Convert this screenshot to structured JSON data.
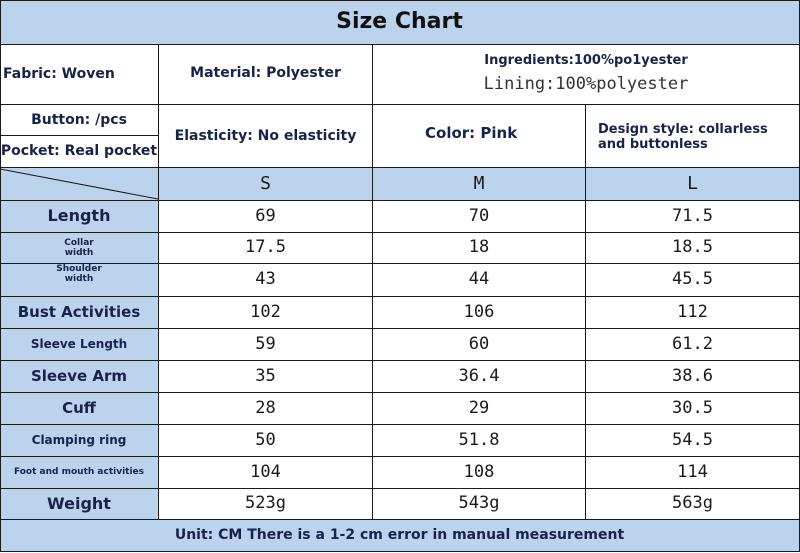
{
  "title": "Size Chart",
  "info": {
    "fabric": "Fabric: Woven",
    "material": "Material: Polyester",
    "ingredients": "Ingredients:100%po1yester",
    "lining": "Lining:100%polyester",
    "button": "Button: /pcs",
    "pocket": "Pocket: Real pocket",
    "elasticity": "Elasticity: No elasticity",
    "color": "Color: Pink",
    "design": "Design style: collarless and buttonless"
  },
  "sizes": [
    "S",
    "M",
    "L"
  ],
  "rows": [
    {
      "label": "Length",
      "values": [
        "69",
        "70",
        "71.5"
      ]
    },
    {
      "label_lines": [
        "Collar",
        "width"
      ],
      "values": [
        "17.5",
        "18",
        "18.5"
      ]
    },
    {
      "label_lines": [
        "Shoulder",
        "width"
      ],
      "values": [
        "43",
        "44",
        "45.5"
      ]
    },
    {
      "label": "Bust Activities",
      "values": [
        "102",
        "106",
        "112"
      ]
    },
    {
      "label": "Sleeve Length",
      "values": [
        "59",
        "60",
        "61.2"
      ]
    },
    {
      "label": "Sleeve Arm",
      "values": [
        "35",
        "36.4",
        "38.6"
      ]
    },
    {
      "label": "Cuff",
      "values": [
        "28",
        "29",
        "30.5"
      ]
    },
    {
      "label": "Clamping ring",
      "values": [
        "50",
        "51.8",
        "54.5"
      ]
    },
    {
      "label": "Foot and mouth activities",
      "values": [
        "104",
        "108",
        "114"
      ]
    },
    {
      "label": "Weight",
      "values": [
        "523g",
        "543g",
        "563g"
      ]
    }
  ],
  "footer": "Unit: CM There is a 1-2 cm error in manual measurement"
}
